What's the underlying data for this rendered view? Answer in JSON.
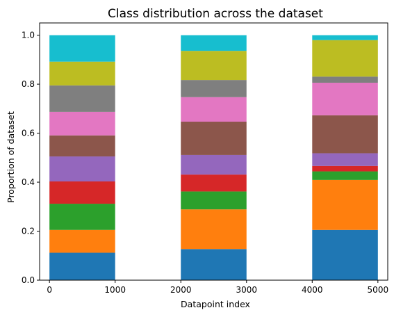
{
  "chart_data": {
    "type": "bar",
    "stacked": true,
    "title": "Class distribution across the dataset",
    "xlabel": "Datapoint index",
    "ylabel": "Proportion of dataset",
    "xlim": [
      -150,
      5150
    ],
    "ylim": [
      0,
      1.05
    ],
    "xticks": [
      0,
      1000,
      2000,
      3000,
      4000,
      5000
    ],
    "yticks": [
      0.0,
      0.2,
      0.4,
      0.6,
      0.8,
      1.0
    ],
    "ytick_labels": [
      "0.0",
      "0.2",
      "0.4",
      "0.6",
      "0.8",
      "1.0"
    ],
    "grid": false,
    "legend": "none",
    "bars": [
      {
        "x_start": 0,
        "x_end": 1000
      },
      {
        "x_start": 2000,
        "x_end": 3000
      },
      {
        "x_start": 4000,
        "x_end": 5000
      }
    ],
    "series": [
      {
        "color": "#1f77b4",
        "values": [
          0.112,
          0.127,
          0.205
        ]
      },
      {
        "color": "#ff7f0e",
        "values": [
          0.093,
          0.162,
          0.204
        ]
      },
      {
        "color": "#2ca02c",
        "values": [
          0.107,
          0.073,
          0.035
        ]
      },
      {
        "color": "#d62728",
        "values": [
          0.091,
          0.069,
          0.022
        ]
      },
      {
        "color": "#9467bd",
        "values": [
          0.102,
          0.08,
          0.052
        ]
      },
      {
        "color": "#8c564b",
        "values": [
          0.086,
          0.136,
          0.155
        ]
      },
      {
        "color": "#e377c2",
        "values": [
          0.096,
          0.1,
          0.133
        ]
      },
      {
        "color": "#7f7f7f",
        "values": [
          0.108,
          0.07,
          0.025
        ]
      },
      {
        "color": "#bcbd22",
        "values": [
          0.097,
          0.119,
          0.149
        ]
      },
      {
        "color": "#17becf",
        "values": [
          0.108,
          0.064,
          0.02
        ]
      }
    ]
  }
}
